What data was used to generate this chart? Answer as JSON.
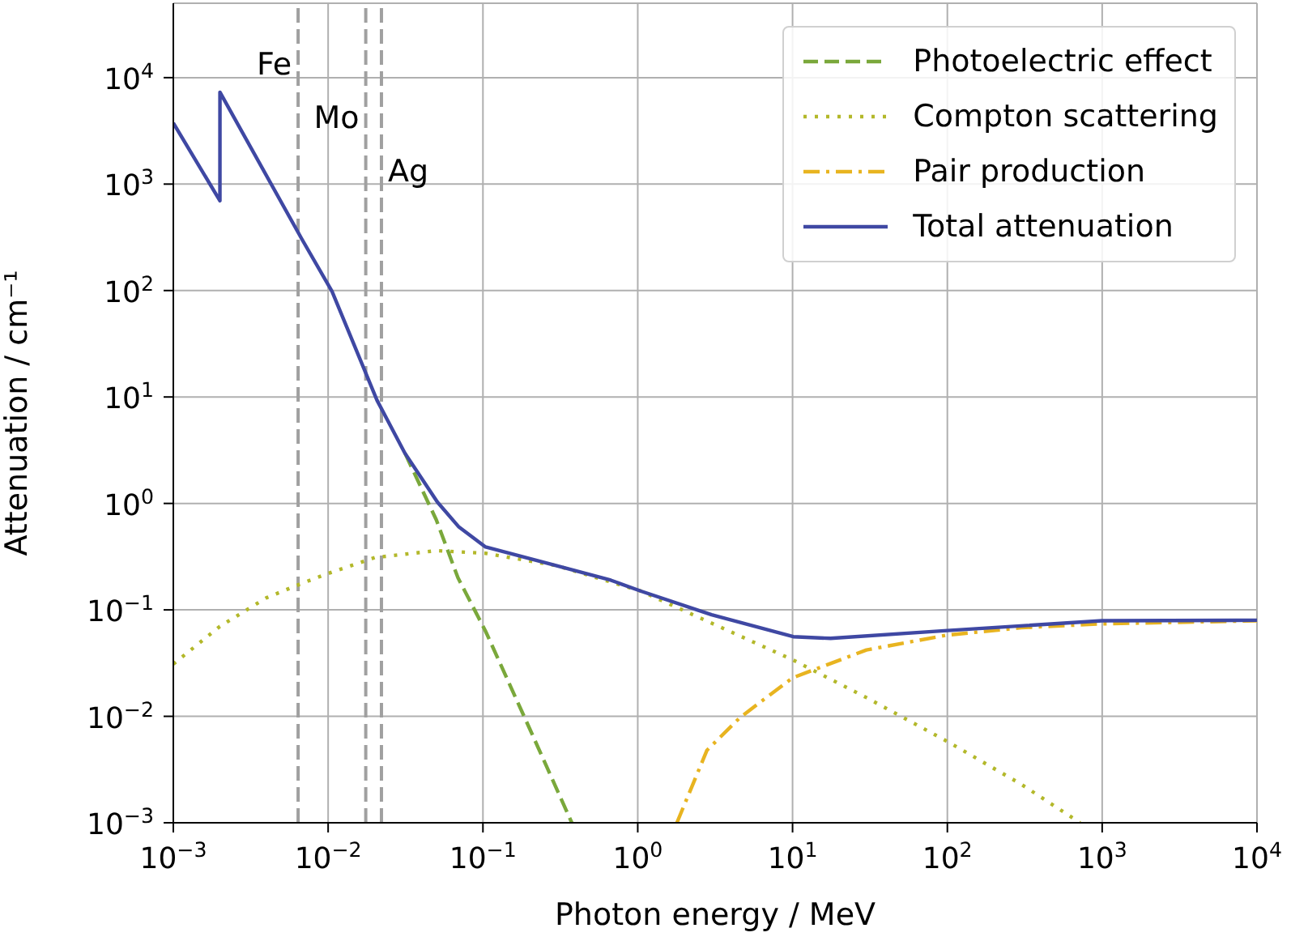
{
  "chart_data": {
    "type": "line",
    "xlabel": "Photon energy / MeV",
    "ylabel": "Attenuation / cm⁻¹",
    "log": "xy",
    "grid": true,
    "legend": "top right",
    "marker": "none",
    "xlim": [
      0.001,
      10000
    ],
    "ylim": [
      0.001,
      50000
    ],
    "xticks": [
      {
        "value": 0.001,
        "label": "10$^{−3}$"
      },
      {
        "value": 0.01,
        "label": "10$^{−2}$"
      },
      {
        "value": 0.1,
        "label": "10$^{−1}$"
      },
      {
        "value": 1,
        "label": "10$^{0}$"
      },
      {
        "value": 10,
        "label": "10$^{1}$"
      },
      {
        "value": 100,
        "label": "10$^{2}$"
      },
      {
        "value": 1000,
        "label": "10$^{3}$"
      },
      {
        "value": 10000,
        "label": "10$^{4}$"
      }
    ],
    "yticks": [
      {
        "value": 0.001,
        "label": "10$^{−3}$"
      },
      {
        "value": 0.01,
        "label": "10$^{−2}$"
      },
      {
        "value": 0.1,
        "label": "10$^{−1}$"
      },
      {
        "value": 1,
        "label": "10$^{0}$"
      },
      {
        "value": 10,
        "label": "10$^{1}$"
      },
      {
        "value": 100,
        "label": "10$^{2}$"
      },
      {
        "value": 1000,
        "label": "10$^{3}$"
      },
      {
        "value": 10000,
        "label": "10$^{4}$"
      }
    ],
    "series": [
      {
        "name": "Photoelectric effect",
        "color": "#7aa83b",
        "line_style": "dashed",
        "x": [
          0.0314,
          0.05,
          0.069,
          0.104,
          0.2,
          0.375
        ],
        "values": [
          2.95,
          0.7,
          0.2,
          0.063,
          0.0077,
          0.001
        ]
      },
      {
        "name": "Compton scattering",
        "color": "#b3b82a",
        "line_style": "dotted",
        "x": [
          0.001,
          0.002,
          0.004,
          0.0068,
          0.01,
          0.02,
          0.05,
          0.104,
          0.3,
          1.05,
          3,
          10,
          30,
          100,
          300,
          720
        ],
        "values": [
          0.031,
          0.07,
          0.13,
          0.178,
          0.22,
          0.31,
          0.36,
          0.34,
          0.26,
          0.15,
          0.075,
          0.034,
          0.015,
          0.0058,
          0.0023,
          0.001
        ]
      },
      {
        "name": "Pair production",
        "color": "#e8b420",
        "line_style": "dashdot",
        "x": [
          1.79,
          2.8,
          4.6,
          10,
          30,
          100,
          300,
          1000,
          10000
        ],
        "values": [
          0.001,
          0.0048,
          0.0098,
          0.023,
          0.042,
          0.058,
          0.068,
          0.074,
          0.079
        ]
      },
      {
        "name": "Total attenuation",
        "color": "#3f48a3",
        "line_style": "solid",
        "x": [
          0.001,
          0.002,
          0.002001,
          0.0068,
          0.0106,
          0.0207,
          0.0314,
          0.0508,
          0.07,
          0.104,
          0.3,
          0.67,
          1.05,
          3,
          10.1,
          17.6,
          100,
          1000,
          10000
        ],
        "values": [
          3750,
          697,
          7300,
          300,
          98,
          9.3,
          2.95,
          1.03,
          0.6,
          0.39,
          0.26,
          0.19,
          0.15,
          0.09,
          0.056,
          0.054,
          0.064,
          0.079,
          0.08
        ]
      }
    ],
    "ref_lines": [
      {
        "axis": "x",
        "value": 0.0064,
        "label": "Fe",
        "color": "#a0a0a0",
        "line_style": "dashed"
      },
      {
        "axis": "x",
        "value": 0.0175,
        "label": "Mo",
        "color": "#a0a0a0",
        "line_style": "dashed"
      },
      {
        "axis": "x",
        "value": 0.0221,
        "label": "Ag",
        "color": "#a0a0a0",
        "line_style": "dashed"
      }
    ]
  }
}
